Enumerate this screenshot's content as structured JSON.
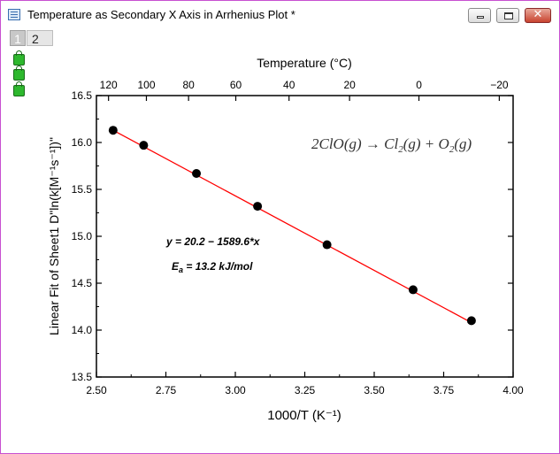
{
  "window": {
    "title": "Temperature as Secondary X Axis in Arrhenius Plot *",
    "controls": [
      "minimize",
      "maximize",
      "close"
    ],
    "close_glyph": "✕"
  },
  "layers": [
    {
      "label": "1",
      "active": true
    },
    {
      "label": "2",
      "active": false
    }
  ],
  "layer_icons": [
    "lock-icon",
    "lock-icon",
    "lock-play-icon"
  ],
  "chart_data": {
    "type": "scatter",
    "xlabel": "1000/T (K⁻¹)",
    "ylabel": "Linear Fit of Sheet1 D\"ln(k[M⁻¹s⁻¹])\"",
    "xlim": [
      2.5,
      4.0
    ],
    "ylim": [
      13.5,
      16.5
    ],
    "x_ticks": [
      "2.50",
      "2.75",
      "3.00",
      "3.25",
      "3.50",
      "3.75",
      "4.00"
    ],
    "y_ticks": [
      "13.5",
      "14.0",
      "14.5",
      "15.0",
      "15.5",
      "16.0",
      "16.5"
    ],
    "top_axis": {
      "label": "Temperature (°C)",
      "ticks": [
        "120",
        "100",
        "80",
        "60",
        "40",
        "20",
        "0",
        "-20"
      ]
    },
    "series": [
      {
        "x": [
          2.56,
          2.67,
          2.86,
          3.08,
          3.33,
          3.64,
          3.85
        ],
        "y": [
          16.13,
          15.97,
          15.67,
          15.32,
          14.91,
          14.43,
          14.1
        ],
        "marker_color": "#000000"
      }
    ],
    "fit_line": {
      "x": [
        2.56,
        3.85
      ],
      "y": [
        16.13,
        14.08
      ],
      "color": "#ff0000"
    },
    "annotations": {
      "equation": "y = 20.2 − 1589.6*x",
      "ea_prefix": "E",
      "ea_sub": "a",
      "ea_rest": " = 13.2 kJ/mol",
      "reaction": {
        "left": "2ClO(g) → Cl",
        "sub": "2",
        "mid": "(g) + O",
        "sub2": "2",
        "right": "(g)"
      }
    },
    "grid": false
  }
}
